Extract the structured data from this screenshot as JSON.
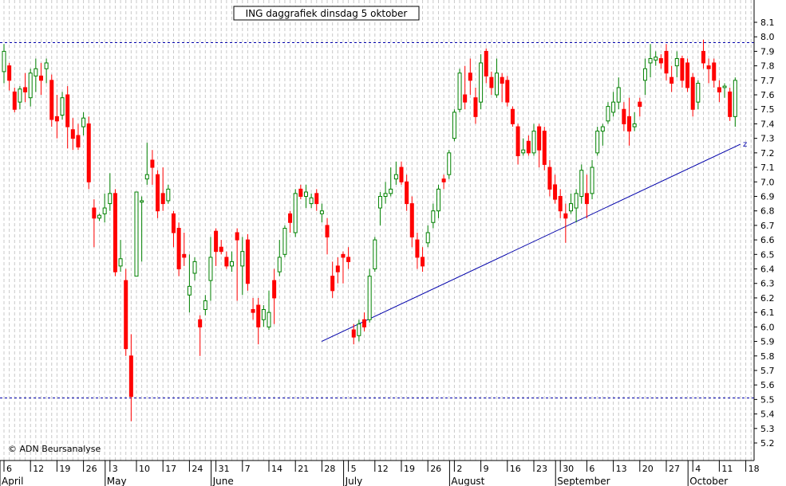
{
  "chart_data": {
    "type": "candlestick",
    "title": "ING daggrafiek dinsdag 5 oktober",
    "copyright": "© ADN Beursanalyse",
    "ylim": [
      5.1,
      8.2
    ],
    "y_ticks": [
      "5.2",
      "5.3",
      "5.4",
      "5.5",
      "5.6",
      "5.7",
      "5.8",
      "5.9",
      "6.0",
      "6.1",
      "6.2",
      "6.3",
      "6.4",
      "6.5",
      "6.6",
      "6.7",
      "6.8",
      "6.9",
      "7.0",
      "7.1",
      "7.2",
      "7.3",
      "7.4",
      "7.5",
      "7.6",
      "7.7",
      "7.8",
      "7.9",
      "8.0",
      "8.1"
    ],
    "x_day_labels": [
      "6",
      "12",
      "19",
      "26",
      "3",
      "10",
      "17",
      "24",
      "31",
      "7",
      "14",
      "21",
      "28",
      "5",
      "12",
      "19",
      "26",
      "2",
      "9",
      "16",
      "23",
      "30",
      "6",
      "13",
      "20",
      "27",
      "4",
      "11",
      "18"
    ],
    "x_month_labels": [
      "April",
      "May",
      "June",
      "July",
      "August",
      "September",
      "October"
    ],
    "month_label_after_day_index": [
      0,
      4,
      8,
      13,
      17,
      21,
      26
    ],
    "grid": true,
    "horizontal_lines": [
      7.96,
      5.51
    ],
    "trendline": {
      "label": "z",
      "from": [
        "2 July",
        5.9
      ],
      "to": [
        "20 October",
        7.26
      ]
    },
    "up_color": "#008000",
    "down_color": "#ff0000",
    "line_color": "#0000aa",
    "candles": [
      [
        7.76,
        7.95,
        7.68,
        7.9
      ],
      [
        7.8,
        7.82,
        7.63,
        7.7
      ],
      [
        7.62,
        7.65,
        7.48,
        7.5
      ],
      [
        7.55,
        7.66,
        7.5,
        7.64
      ],
      [
        7.65,
        7.75,
        7.55,
        7.62
      ],
      [
        7.58,
        7.78,
        7.52,
        7.75
      ],
      [
        7.73,
        7.85,
        7.62,
        7.78
      ],
      [
        7.73,
        7.82,
        7.6,
        7.7
      ],
      [
        7.78,
        7.85,
        7.68,
        7.82
      ],
      [
        7.7,
        7.74,
        7.38,
        7.43
      ],
      [
        7.45,
        7.6,
        7.3,
        7.42
      ],
      [
        7.46,
        7.62,
        7.43,
        7.58
      ],
      [
        7.6,
        7.66,
        7.23,
        7.38
      ],
      [
        7.36,
        7.44,
        7.22,
        7.3
      ],
      [
        7.32,
        7.4,
        7.22,
        7.24
      ],
      [
        7.38,
        7.48,
        7.32,
        7.44
      ],
      [
        7.4,
        7.45,
        6.95,
        7.0
      ],
      [
        6.82,
        6.88,
        6.55,
        6.75
      ],
      [
        6.75,
        6.78,
        6.73,
        6.77
      ],
      [
        6.78,
        6.92,
        6.72,
        6.82
      ],
      [
        6.85,
        7.06,
        6.8,
        6.92
      ],
      [
        6.92,
        6.95,
        6.35,
        6.38
      ],
      [
        6.42,
        6.6,
        6.38,
        6.47
      ],
      [
        6.32,
        6.4,
        5.8,
        5.85
      ],
      [
        5.8,
        5.95,
        5.35,
        5.52
      ],
      [
        6.35,
        6.92,
        6.35,
        6.93
      ],
      [
        6.86,
        6.9,
        6.45,
        6.87
      ],
      [
        7.02,
        7.27,
        6.98,
        7.05
      ],
      [
        7.15,
        7.22,
        6.98,
        7.1
      ],
      [
        7.05,
        7.08,
        6.75,
        6.8
      ],
      [
        6.92,
        7.1,
        6.8,
        6.85
      ],
      [
        6.87,
        6.98,
        6.85,
        6.95
      ],
      [
        6.78,
        6.8,
        6.55,
        6.65
      ],
      [
        6.68,
        6.72,
        6.35,
        6.4
      ],
      [
        6.5,
        6.65,
        6.42,
        6.48
      ],
      [
        6.22,
        6.5,
        6.1,
        6.28
      ],
      [
        6.37,
        6.48,
        6.32,
        6.45
      ],
      [
        6.05,
        6.08,
        5.8,
        6.0
      ],
      [
        6.12,
        6.22,
        6.08,
        6.18
      ],
      [
        6.32,
        6.62,
        6.18,
        6.48
      ],
      [
        6.66,
        6.68,
        6.42,
        6.52
      ],
      [
        6.55,
        6.6,
        6.5,
        6.52
      ],
      [
        6.48,
        6.52,
        6.4,
        6.42
      ],
      [
        6.42,
        6.52,
        6.38,
        6.45
      ],
      [
        6.65,
        6.68,
        6.18,
        6.6
      ],
      [
        6.42,
        6.62,
        6.22,
        6.52
      ],
      [
        6.6,
        6.64,
        6.25,
        6.3
      ],
      [
        6.12,
        6.2,
        6.05,
        6.1
      ],
      [
        6.15,
        6.2,
        5.88,
        6.0
      ],
      [
        6.05,
        6.15,
        6.0,
        6.12
      ],
      [
        6.0,
        6.25,
        5.98,
        6.1
      ],
      [
        6.32,
        6.4,
        6.02,
        6.2
      ],
      [
        6.38,
        6.6,
        6.35,
        6.48
      ],
      [
        6.5,
        6.7,
        6.48,
        6.68
      ],
      [
        6.78,
        6.8,
        6.65,
        6.72
      ],
      [
        6.65,
        6.95,
        6.62,
        6.92
      ],
      [
        6.95,
        6.98,
        6.88,
        6.9
      ],
      [
        6.9,
        6.98,
        6.82,
        6.93
      ],
      [
        6.85,
        6.92,
        6.82,
        6.89
      ],
      [
        6.92,
        6.95,
        6.8,
        6.85
      ],
      [
        6.78,
        6.85,
        6.72,
        6.8
      ],
      [
        6.7,
        6.75,
        6.5,
        6.62
      ],
      [
        6.35,
        6.45,
        6.2,
        6.25
      ],
      [
        6.42,
        6.48,
        6.3,
        6.38
      ],
      [
        6.5,
        6.52,
        6.3,
        6.48
      ],
      [
        6.48,
        6.55,
        6.4,
        6.45
      ],
      [
        5.98,
        6.02,
        5.88,
        5.93
      ],
      [
        5.94,
        6.05,
        5.9,
        6.02
      ],
      [
        6.05,
        6.1,
        5.97,
        6.0
      ],
      [
        6.05,
        6.4,
        6.03,
        6.35
      ],
      [
        6.4,
        6.62,
        6.38,
        6.6
      ],
      [
        6.82,
        6.93,
        6.7,
        6.9
      ],
      [
        6.9,
        7.0,
        6.85,
        6.92
      ],
      [
        6.92,
        7.1,
        6.9,
        6.95
      ],
      [
        7.02,
        7.14,
        6.98,
        7.05
      ],
      [
        7.1,
        7.14,
        6.98,
        7.0
      ],
      [
        7.0,
        7.05,
        6.8,
        6.85
      ],
      [
        6.85,
        6.9,
        6.55,
        6.62
      ],
      [
        6.6,
        6.65,
        6.4,
        6.48
      ],
      [
        6.48,
        6.55,
        6.38,
        6.42
      ],
      [
        6.58,
        6.7,
        6.55,
        6.65
      ],
      [
        6.72,
        6.85,
        6.68,
        6.8
      ],
      [
        6.8,
        6.98,
        6.75,
        6.95
      ],
      [
        7.02,
        7.05,
        6.95,
        7.0
      ],
      [
        7.05,
        7.22,
        7.02,
        7.2
      ],
      [
        7.3,
        7.5,
        7.28,
        7.48
      ],
      [
        7.5,
        7.78,
        7.48,
        7.75
      ],
      [
        7.6,
        7.8,
        7.5,
        7.55
      ],
      [
        7.75,
        7.85,
        7.6,
        7.7
      ],
      [
        7.58,
        7.65,
        7.4,
        7.45
      ],
      [
        7.55,
        7.88,
        7.5,
        7.82
      ],
      [
        7.9,
        7.92,
        7.68,
        7.73
      ],
      [
        7.72,
        7.76,
        7.6,
        7.65
      ],
      [
        7.6,
        7.85,
        7.58,
        7.75
      ],
      [
        7.72,
        7.75,
        7.55,
        7.68
      ],
      [
        7.7,
        7.73,
        7.52,
        7.55
      ],
      [
        7.5,
        7.52,
        7.38,
        7.4
      ],
      [
        7.38,
        7.4,
        7.12,
        7.18
      ],
      [
        7.2,
        7.3,
        7.18,
        7.22
      ],
      [
        7.28,
        7.32,
        7.18,
        7.2
      ],
      [
        7.2,
        7.4,
        7.18,
        7.35
      ],
      [
        7.38,
        7.4,
        7.1,
        7.22
      ],
      [
        7.35,
        7.38,
        7.08,
        7.12
      ],
      [
        7.1,
        7.15,
        6.9,
        6.95
      ],
      [
        6.98,
        7.05,
        6.85,
        6.88
      ],
      [
        6.9,
        6.95,
        6.75,
        6.8
      ],
      [
        6.78,
        6.85,
        6.58,
        6.75
      ],
      [
        6.8,
        6.92,
        6.78,
        6.85
      ],
      [
        6.82,
        6.95,
        6.72,
        6.92
      ],
      [
        6.9,
        7.12,
        6.85,
        7.08
      ],
      [
        6.92,
        7.05,
        6.75,
        6.85
      ],
      [
        6.92,
        7.15,
        6.88,
        7.1
      ],
      [
        7.2,
        7.38,
        7.18,
        7.35
      ],
      [
        7.35,
        7.4,
        7.25,
        7.38
      ],
      [
        7.42,
        7.55,
        7.4,
        7.52
      ],
      [
        7.48,
        7.62,
        7.45,
        7.55
      ],
      [
        7.55,
        7.72,
        7.5,
        7.65
      ],
      [
        7.5,
        7.55,
        7.35,
        7.4
      ],
      [
        7.45,
        7.58,
        7.25,
        7.35
      ],
      [
        7.38,
        7.48,
        7.35,
        7.4
      ],
      [
        7.55,
        7.58,
        7.45,
        7.52
      ],
      [
        7.7,
        7.85,
        7.6,
        7.78
      ],
      [
        7.82,
        7.95,
        7.72,
        7.85
      ],
      [
        7.84,
        7.9,
        7.8,
        7.86
      ],
      [
        7.85,
        7.88,
        7.78,
        7.82
      ],
      [
        7.9,
        7.95,
        7.7,
        7.75
      ],
      [
        7.72,
        7.8,
        7.62,
        7.68
      ],
      [
        7.8,
        7.9,
        7.72,
        7.85
      ],
      [
        7.85,
        7.87,
        7.65,
        7.7
      ],
      [
        7.82,
        7.85,
        7.62,
        7.65
      ],
      [
        7.72,
        7.75,
        7.45,
        7.5
      ],
      [
        7.55,
        7.7,
        7.5,
        7.68
      ],
      [
        7.9,
        7.98,
        7.78,
        7.82
      ],
      [
        7.8,
        7.85,
        7.68,
        7.78
      ],
      [
        7.82,
        7.85,
        7.65,
        7.7
      ],
      [
        7.65,
        7.7,
        7.55,
        7.62
      ],
      [
        7.65,
        7.68,
        7.58,
        7.66
      ],
      [
        7.62,
        7.65,
        7.42,
        7.45
      ],
      [
        7.45,
        7.72,
        7.38,
        7.7
      ]
    ]
  }
}
